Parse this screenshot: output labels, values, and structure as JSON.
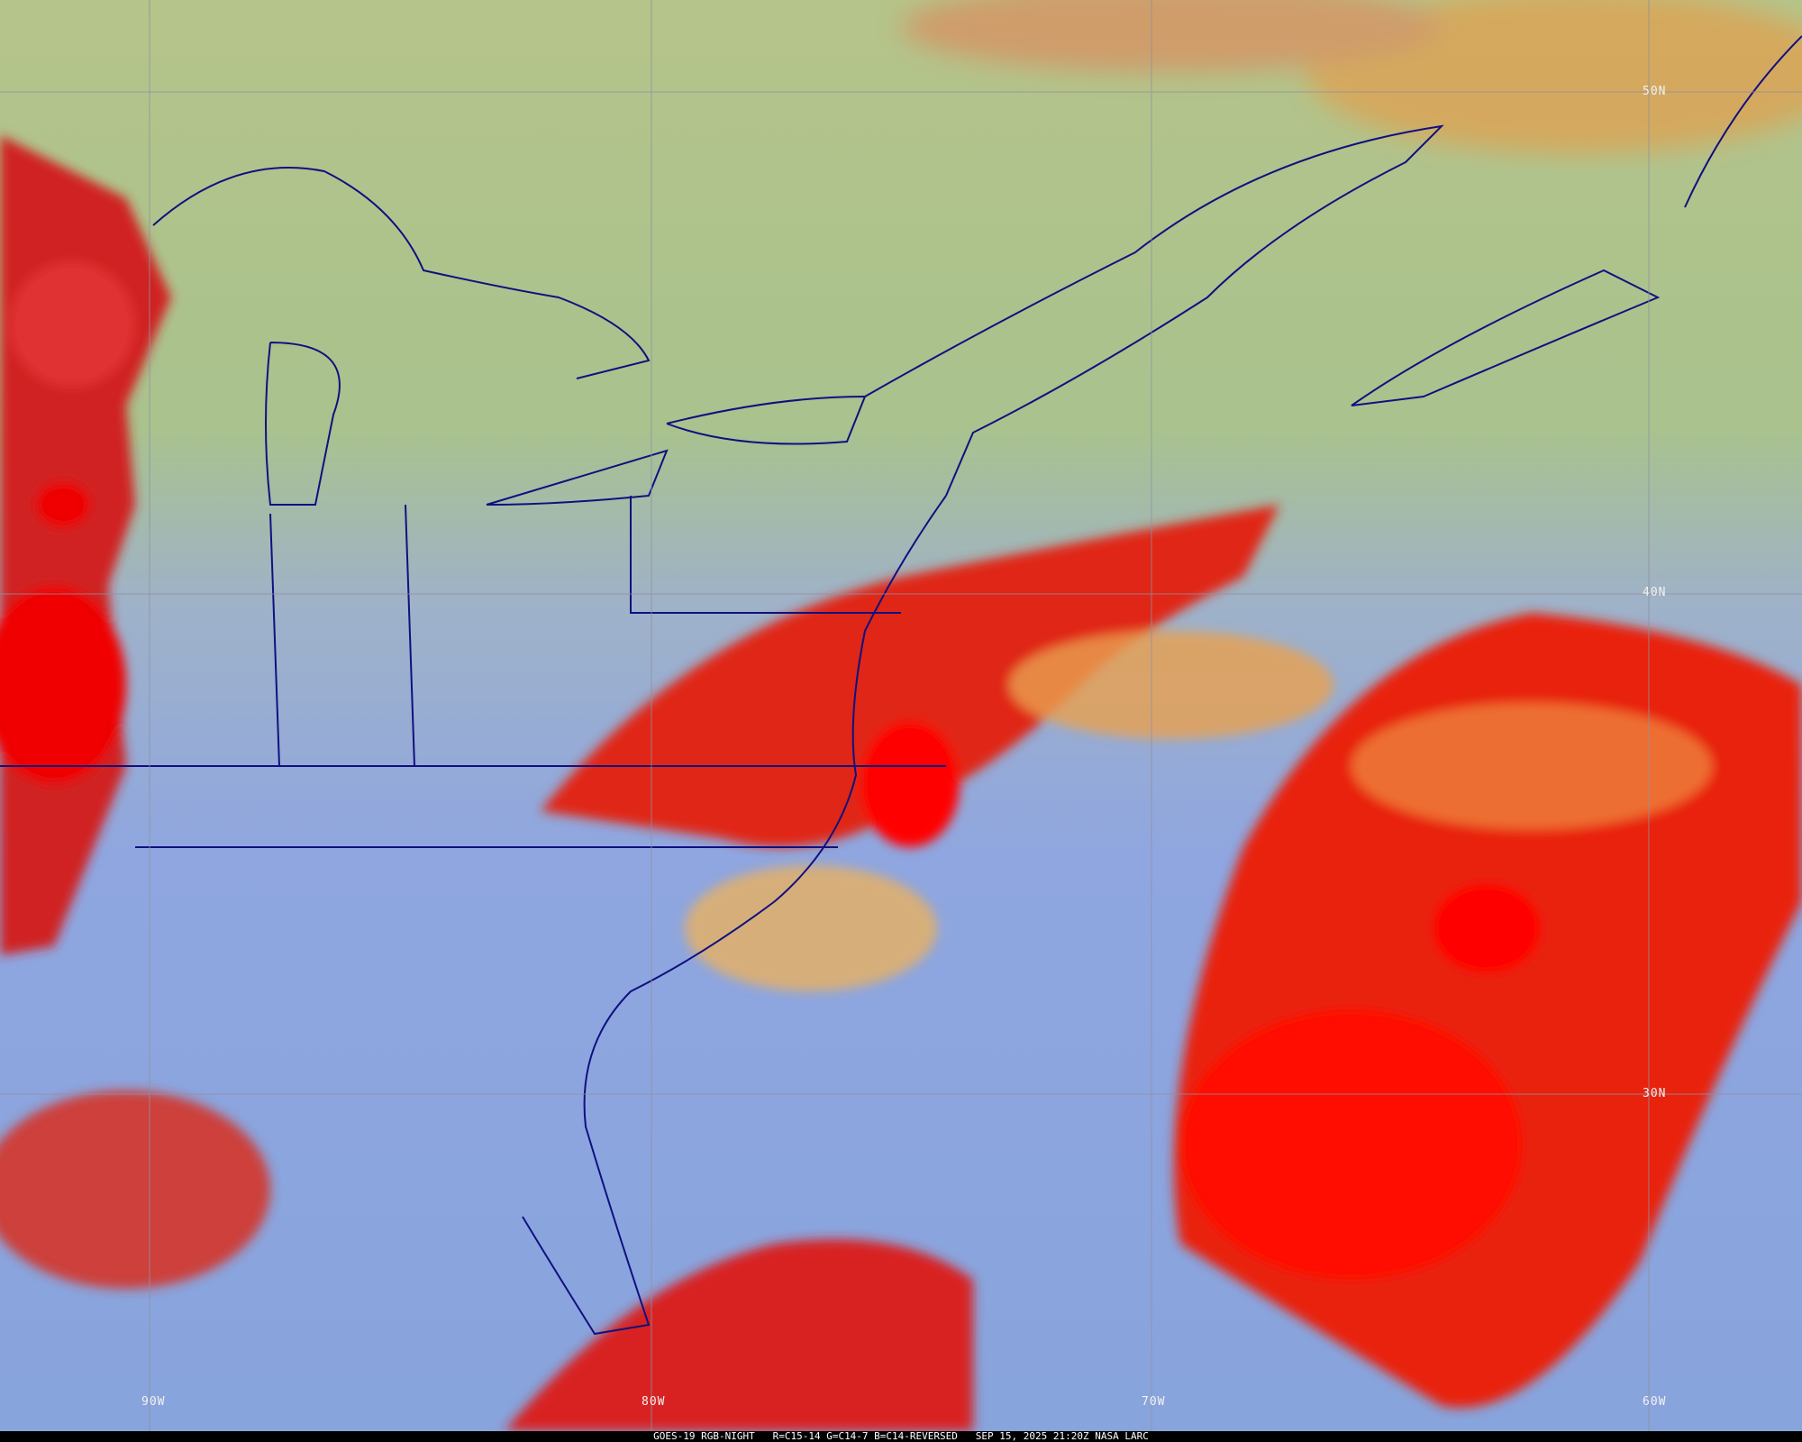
{
  "map": {
    "caption": {
      "satellite": "GOES-19 RGB-NIGHT",
      "recipe": "R=C15-14 G=C14-7 B=C14-REVERSED",
      "timestamp": "SEP 15, 2025 21:20Z",
      "credit": "NASA LARC"
    },
    "latitude_labels": [
      "50N",
      "40N",
      "30N"
    ],
    "longitude_labels": [
      "90W",
      "80W",
      "70W",
      "60W"
    ],
    "colors": {
      "clear_land_sea": "#8fa6e0",
      "high_cloud": "#e01010",
      "mid_cloud": "#f0a040",
      "low_cloud_north": "#a8c080",
      "boundaries": "#101080",
      "grid": "#9090a0"
    }
  }
}
